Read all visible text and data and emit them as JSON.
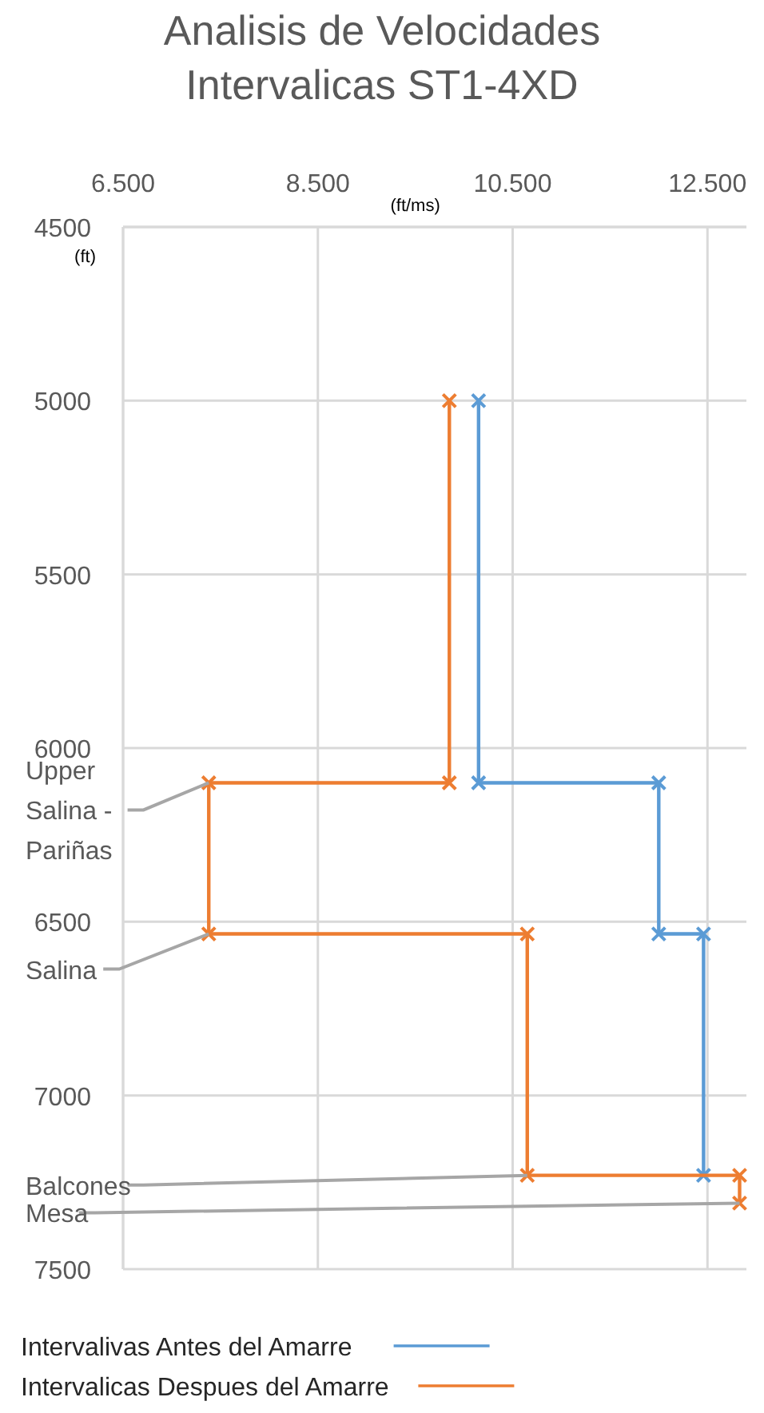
{
  "chart_data": {
    "type": "line",
    "title": "Analisis de Velocidades Intervalicas ST1-4XD",
    "xlabel": "(ft/ms)",
    "ylabel": "(ft)",
    "xlim": [
      6500,
      12900
    ],
    "xticks": [
      {
        "value": 6500,
        "label": "6.500"
      },
      {
        "value": 8500,
        "label": "8.500"
      },
      {
        "value": 10500,
        "label": "10.500"
      },
      {
        "value": 12500,
        "label": "12.500"
      }
    ],
    "ylim": [
      7500,
      4500
    ],
    "yticks": [
      4500,
      5000,
      5500,
      6000,
      6500,
      7000,
      7500
    ],
    "grid": true,
    "marker": "cross",
    "line_style": "solid",
    "legend": "bottom",
    "series": [
      {
        "name": "Intervalivas Antes del Amarre",
        "color": "#5b9bd5",
        "x": [
          10150,
          10150,
          12000,
          12000,
          12460,
          12460
        ],
        "values": [
          5000,
          6100,
          6100,
          6535,
          6535,
          7230
        ]
      },
      {
        "name": "Intervalicas Despues del Amarre",
        "color": "#ed7d31",
        "x": [
          9850,
          9850,
          7380,
          7380,
          10650,
          10650,
          12830,
          12830
        ],
        "values": [
          5000,
          6100,
          6100,
          6535,
          6535,
          7230,
          7230,
          7310
        ]
      }
    ],
    "annotations": [
      {
        "text": "Upper Salina - Pariñas",
        "x": 7380,
        "y": 6100
      },
      {
        "text": "Salina",
        "x": 7380,
        "y": 6535
      },
      {
        "text": "Balcones",
        "x": 10650,
        "y": 7230
      },
      {
        "text": "Mesa",
        "x": 12830,
        "y": 7310
      }
    ]
  }
}
